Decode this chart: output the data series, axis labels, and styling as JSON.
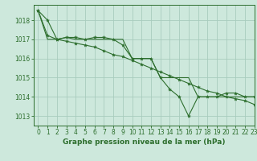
{
  "title": "Graphe pression niveau de la mer (hPa)",
  "background_color": "#cde8dc",
  "grid_color": "#a8ccbe",
  "line_color": "#2d6e2d",
  "ylim": [
    1012.5,
    1018.8
  ],
  "xlim": [
    -0.5,
    23
  ],
  "yticks": [
    1013,
    1014,
    1015,
    1016,
    1017,
    1018
  ],
  "xticks": [
    0,
    1,
    2,
    3,
    4,
    5,
    6,
    7,
    8,
    9,
    10,
    11,
    12,
    13,
    14,
    15,
    16,
    17,
    18,
    19,
    20,
    21,
    22,
    23
  ],
  "series1": [
    1018.5,
    1018.0,
    1017.0,
    1017.1,
    1017.1,
    1017.0,
    1017.1,
    1017.1,
    1017.0,
    1016.7,
    1016.0,
    1016.0,
    1016.0,
    1015.0,
    1014.4,
    1014.0,
    1013.0,
    1014.0,
    1014.0,
    1014.0,
    1014.2,
    1014.2,
    1014.0,
    1014.0
  ],
  "series2": [
    1018.5,
    1017.0,
    1017.0,
    1017.1,
    1017.0,
    1017.0,
    1017.0,
    1017.0,
    1017.0,
    1017.0,
    1016.0,
    1016.0,
    1016.0,
    1015.0,
    1015.0,
    1015.0,
    1015.0,
    1014.0,
    1014.0,
    1014.0,
    1014.0,
    1014.0,
    1014.0,
    1014.0
  ],
  "series3": [
    1018.5,
    1017.2,
    1017.0,
    1016.9,
    1016.8,
    1016.7,
    1016.6,
    1016.4,
    1016.2,
    1016.1,
    1015.9,
    1015.7,
    1015.5,
    1015.3,
    1015.1,
    1014.9,
    1014.7,
    1014.5,
    1014.3,
    1014.2,
    1014.0,
    1013.9,
    1013.8,
    1013.6
  ],
  "title_fontsize": 6.5,
  "tick_fontsize": 5.5
}
